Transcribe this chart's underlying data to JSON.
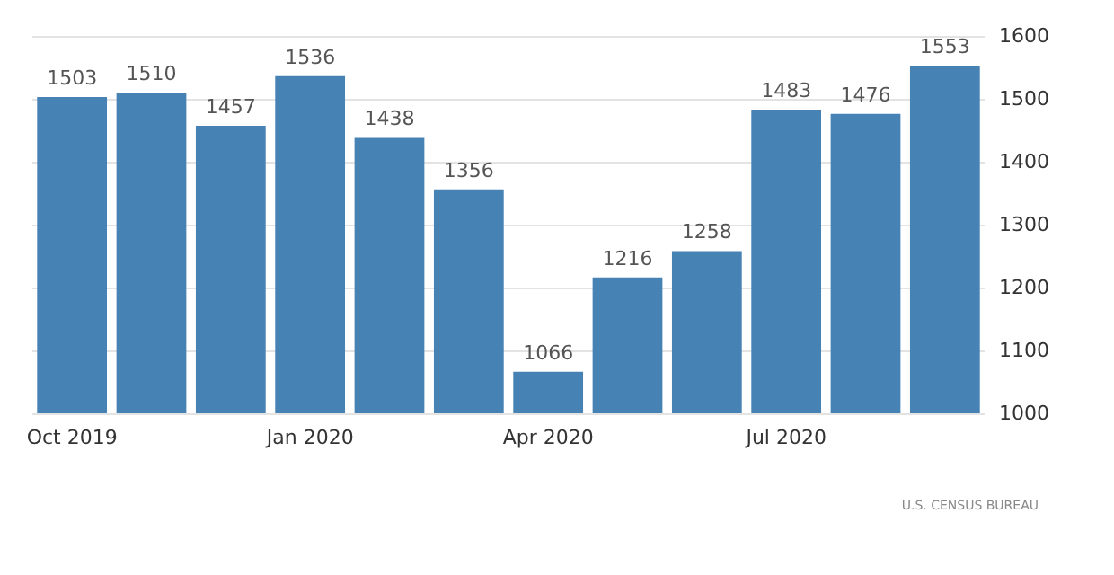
{
  "chart_data": {
    "type": "bar",
    "categories": [
      "Oct 2019",
      null,
      null,
      "Jan 2020",
      null,
      null,
      "Apr 2020",
      null,
      null,
      "Jul 2020",
      null,
      null
    ],
    "values": [
      1503,
      1510,
      1457,
      1536,
      1438,
      1356,
      1066,
      1216,
      1258,
      1483,
      1476,
      1553
    ],
    "color": "#4682b4",
    "ylim": [
      1000,
      1600
    ],
    "yticks": [
      1000,
      1100,
      1200,
      1300,
      1400,
      1500,
      1600
    ],
    "grid": "y",
    "data_labels": true,
    "annotations": [
      "U.S. CENSUS BUREAU"
    ]
  }
}
